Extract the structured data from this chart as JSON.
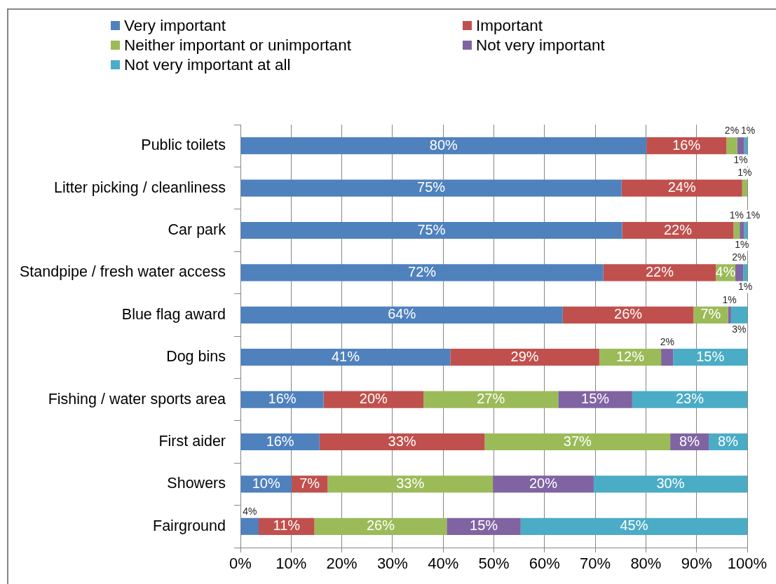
{
  "chart_data": {
    "type": "bar",
    "orientation": "horizontal",
    "stacked": true,
    "categories": [
      "Public toilets",
      "Litter picking / cleanliness",
      "Car park",
      "Standpipe / fresh water access",
      "Blue flag award",
      "Dog bins",
      "Fishing / water sports area",
      "First aider",
      "Showers",
      "Fairground"
    ],
    "series": [
      {
        "name": "Very important",
        "color": "#4f81bd",
        "values": [
          80.1,
          75.2,
          75.3,
          71.6,
          63.6,
          41.4,
          16.4,
          15.6,
          10.1,
          3.6
        ],
        "value_labels": [
          "80%",
          "75%",
          "75%",
          "72%",
          "64%",
          "41%",
          "16%",
          "16%",
          "10%",
          "4%"
        ]
      },
      {
        "name": "Important",
        "color": "#c0504d",
        "values": [
          15.8,
          23.8,
          22.0,
          22.2,
          25.8,
          29.4,
          19.7,
          32.6,
          7.1,
          11.0
        ],
        "value_labels": [
          "16%",
          "24%",
          "22%",
          "22%",
          "26%",
          "29%",
          "20%",
          "33%",
          "7%",
          "11%"
        ]
      },
      {
        "name": "Neither important or unimportant",
        "color": "#9bbb59",
        "values": [
          2.1,
          1.0,
          1.2,
          3.8,
          6.8,
          12.2,
          26.6,
          36.6,
          32.6,
          26.1
        ],
        "value_labels": [
          "2%",
          "1%",
          "1%",
          "4%",
          "7%",
          "12%",
          "27%",
          "37%",
          "33%",
          "26%"
        ]
      },
      {
        "name": "Not very important",
        "color": "#8064a2",
        "values": [
          1.4,
          null,
          0.9,
          1.6,
          0.6,
          2.4,
          14.6,
          7.6,
          19.9,
          14.6
        ],
        "value_labels": [
          "1%",
          null,
          "1%",
          "2%",
          "1%",
          "2%",
          "15%",
          "8%",
          "20%",
          "15%"
        ]
      },
      {
        "name": "Not very important at all",
        "color": "#4bacc6",
        "values": [
          0.6,
          null,
          0.6,
          0.8,
          3.2,
          14.6,
          22.7,
          7.6,
          30.3,
          44.7
        ],
        "value_labels": [
          "1%",
          null,
          "1%",
          "1%",
          "3%",
          "15%",
          "23%",
          "8%",
          "30%",
          "45%"
        ]
      }
    ],
    "xlim": [
      0,
      100
    ],
    "xticks": [
      {
        "value": 0,
        "label": "0%"
      },
      {
        "value": 10,
        "label": "10%"
      },
      {
        "value": 20,
        "label": "20%"
      },
      {
        "value": 30,
        "label": "30%"
      },
      {
        "value": 40,
        "label": "40%"
      },
      {
        "value": 50,
        "label": "50%"
      },
      {
        "value": 60,
        "label": "60%"
      },
      {
        "value": 70,
        "label": "70%"
      },
      {
        "value": 80,
        "label": "80%"
      },
      {
        "value": 90,
        "label": "90%"
      },
      {
        "value": 100,
        "label": "100%"
      }
    ],
    "grid": "x",
    "legend": "top"
  }
}
